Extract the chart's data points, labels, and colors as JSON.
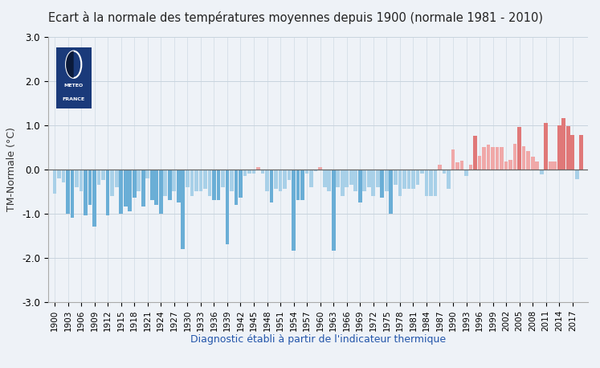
{
  "title": "Ecart à la normale des températures moyennes depuis 1900 (normale 1981 - 2010)",
  "xlabel": "Diagnostic établi à partir de l'indicateur thermique",
  "ylabel": "TM-Normale (°C)",
  "ylim": [
    -3.0,
    3.0
  ],
  "yticks": [
    -3.0,
    -2.0,
    -1.0,
    0.0,
    1.0,
    2.0,
    3.0
  ],
  "years": [
    1900,
    1901,
    1902,
    1903,
    1904,
    1905,
    1906,
    1907,
    1908,
    1909,
    1910,
    1911,
    1912,
    1913,
    1914,
    1915,
    1916,
    1917,
    1918,
    1919,
    1920,
    1921,
    1922,
    1923,
    1924,
    1925,
    1926,
    1927,
    1928,
    1929,
    1930,
    1931,
    1932,
    1933,
    1934,
    1935,
    1936,
    1937,
    1938,
    1939,
    1940,
    1941,
    1942,
    1943,
    1944,
    1945,
    1946,
    1947,
    1948,
    1949,
    1950,
    1951,
    1952,
    1953,
    1954,
    1955,
    1956,
    1957,
    1958,
    1959,
    1960,
    1961,
    1962,
    1963,
    1964,
    1965,
    1966,
    1967,
    1968,
    1969,
    1970,
    1971,
    1972,
    1973,
    1974,
    1975,
    1976,
    1977,
    1978,
    1979,
    1980,
    1981,
    1982,
    1983,
    1984,
    1985,
    1986,
    1987,
    1988,
    1989,
    1990,
    1991,
    1992,
    1993,
    1994,
    1995,
    1996,
    1997,
    1998,
    1999,
    2000,
    2001,
    2002,
    2003,
    2004,
    2005,
    2006,
    2007,
    2008,
    2009,
    2010,
    2011,
    2012,
    2013,
    2014,
    2015,
    2016,
    2017,
    2018,
    2019
  ],
  "values": [
    -0.55,
    -0.2,
    -0.3,
    -1.0,
    -1.1,
    -0.4,
    -0.5,
    -1.05,
    -0.8,
    -1.3,
    -0.35,
    -0.25,
    -1.05,
    -0.6,
    -0.4,
    -1.0,
    -0.85,
    -0.95,
    -0.65,
    -0.5,
    -0.85,
    -0.2,
    -0.7,
    -0.8,
    -1.0,
    -0.6,
    -0.7,
    -0.5,
    -0.75,
    -1.8,
    -0.4,
    -0.6,
    -0.5,
    -0.5,
    -0.45,
    -0.6,
    -0.7,
    -0.7,
    -0.4,
    -1.7,
    -0.5,
    -0.8,
    -0.65,
    -0.15,
    -0.1,
    -0.1,
    0.05,
    -0.1,
    -0.5,
    -0.75,
    -0.45,
    -0.5,
    -0.45,
    -0.25,
    -1.85,
    -0.7,
    -0.7,
    -0.1,
    -0.4,
    -0.05,
    0.05,
    -0.4,
    -0.5,
    -1.85,
    -0.4,
    -0.6,
    -0.4,
    -0.35,
    -0.5,
    -0.75,
    -0.5,
    -0.4,
    -0.6,
    -0.4,
    -0.65,
    -0.5,
    -1.0,
    -0.35,
    -0.6,
    -0.45,
    -0.45,
    -0.45,
    -0.35,
    -0.1,
    -0.6,
    -0.6,
    -0.6,
    0.1,
    -0.1,
    -0.45,
    0.45,
    0.15,
    0.2,
    -0.15,
    0.1,
    0.75,
    0.3,
    0.5,
    0.55,
    0.5,
    0.5,
    0.5,
    0.18,
    0.22,
    0.57,
    0.95,
    0.52,
    0.42,
    0.28,
    0.18,
    -0.12,
    1.05,
    0.18,
    0.18,
    1.0,
    1.15,
    0.98,
    0.78,
    -0.22,
    0.78
  ],
  "color_positive": "#e07878",
  "color_positive_light": "#f0a8a8",
  "color_negative": "#6aaed6",
  "color_negative_light": "#a8d0e8",
  "logo_bg": "#1a3a7a",
  "grid_color": "#c8d4de",
  "axis_label_color": "#2255aa",
  "bg_color": "#eef2f7",
  "plot_bg": "#eef2f7"
}
